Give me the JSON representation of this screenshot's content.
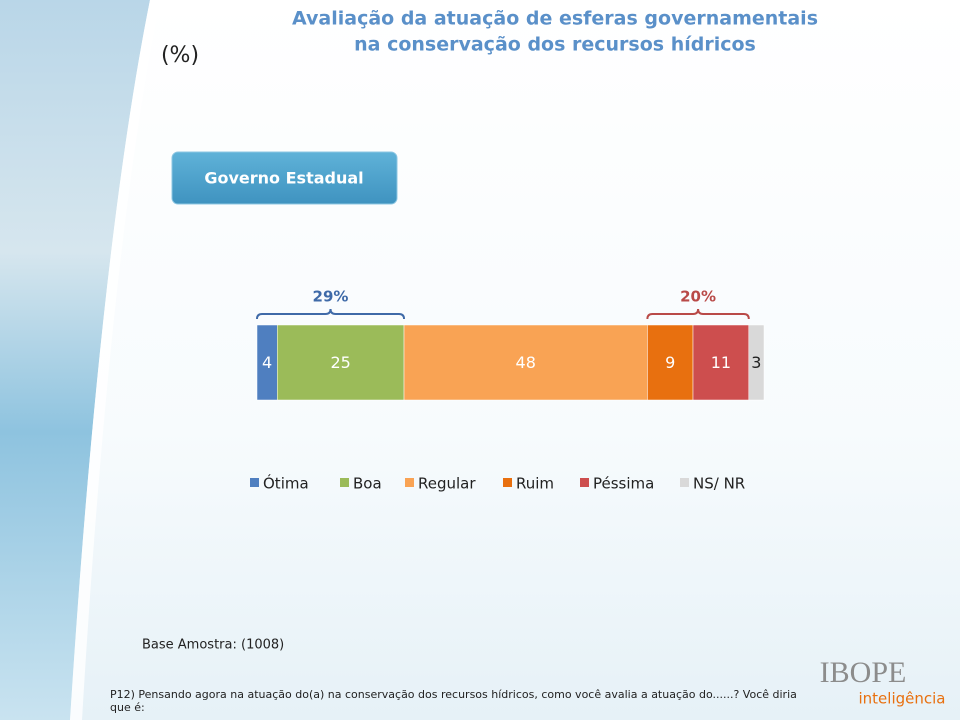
{
  "unit_label": "(%)",
  "button": "Governo Estadual",
  "base": "Base Amostra: (1008)",
  "question": "P12) Pensando agora na atuação do(a) na conservação dos recursos hídricos, como você avalia a atuação do......? Você diria que é:",
  "logo": {
    "name": "IBOPE",
    "tagline": "inteligência"
  },
  "chart_data": {
    "type": "bar",
    "orientation": "horizontal",
    "stacked": true,
    "title": [
      "Avaliação da atuação de esferas governamentais",
      "na conservação dos recursos hídricos"
    ],
    "xlim": [
      0,
      100
    ],
    "series": [
      {
        "name": "Ótima",
        "color": "#4f7fc0",
        "values": [
          4
        ]
      },
      {
        "name": "Boa",
        "color": "#9bbb59",
        "values": [
          25
        ]
      },
      {
        "name": "Regular",
        "color": "#f9a354",
        "values": [
          48
        ]
      },
      {
        "name": "Ruim",
        "color": "#e8700f",
        "values": [
          9
        ]
      },
      {
        "name": "Péssima",
        "color": "#cd4e4e",
        "values": [
          11
        ]
      },
      {
        "name": "NS/ NR",
        "color": "#d9d9d9",
        "values": [
          3
        ]
      }
    ],
    "annotations": [
      {
        "value": 29,
        "label": "29%",
        "color": "#3f6aa8"
      },
      {
        "value": 20,
        "label": "20%",
        "color": "#b94a48"
      }
    ],
    "legend": "bottom"
  }
}
